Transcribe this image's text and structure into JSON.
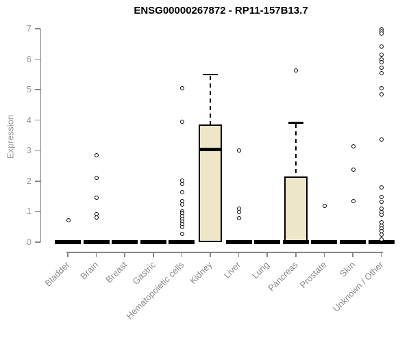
{
  "chart_data": {
    "type": "boxplot",
    "title": "ENSG00000267872 - RP11-157B13.7",
    "xlabel": "",
    "ylabel": "Expression",
    "ylim": [
      0,
      7
    ],
    "yticks": [
      0,
      1,
      2,
      3,
      4,
      5,
      6,
      7
    ],
    "grid": false,
    "legend": false,
    "categories": [
      "Bladder",
      "Brain",
      "Breast",
      "Gastric",
      "Hematopoietic cells",
      "Kidney",
      "Liver",
      "Lung",
      "Pancreas",
      "Prostate",
      "Skin",
      "Unknown / Other"
    ],
    "boxes": [
      {
        "category": "Bladder",
        "median": 0,
        "q1": 0,
        "q3": 0,
        "whisker_low": 0,
        "whisker_high": 0,
        "outliers": [
          0.72
        ]
      },
      {
        "category": "Brain",
        "median": 0,
        "q1": 0,
        "q3": 0,
        "whisker_low": 0,
        "whisker_high": 0,
        "outliers": [
          2.87,
          2.12,
          1.47,
          0.94,
          0.82
        ]
      },
      {
        "category": "Breast",
        "median": 0,
        "q1": 0,
        "q3": 0,
        "whisker_low": 0,
        "whisker_high": 0,
        "outliers": []
      },
      {
        "category": "Gastric",
        "median": 0,
        "q1": 0,
        "q3": 0,
        "whisker_low": 0,
        "whisker_high": 0,
        "outliers": []
      },
      {
        "category": "Hematopoietic cells",
        "median": 0,
        "q1": 0,
        "q3": 0,
        "whisker_low": 0,
        "whisker_high": 0,
        "outliers": [
          5.05,
          3.95,
          2.03,
          1.92,
          1.66,
          1.36,
          1.25,
          1.03,
          0.95,
          0.86,
          0.77,
          0.68,
          0.59,
          0.5,
          0.27
        ]
      },
      {
        "category": "Kidney",
        "median": 3.05,
        "q1": 0,
        "q3": 3.86,
        "whisker_low": 0,
        "whisker_high": 5.5,
        "outliers": []
      },
      {
        "category": "Liver",
        "median": 0,
        "q1": 0,
        "q3": 0,
        "whisker_low": 0,
        "whisker_high": 0,
        "outliers": [
          3.01,
          1.1,
          0.99,
          0.8
        ]
      },
      {
        "category": "Lung",
        "median": 0,
        "q1": 0,
        "q3": 0,
        "whisker_low": 0,
        "whisker_high": 0,
        "outliers": []
      },
      {
        "category": "Pancreas",
        "median": 0,
        "q1": 0,
        "q3": 2.16,
        "whisker_low": 0,
        "whisker_high": 3.92,
        "outliers": [
          5.64
        ]
      },
      {
        "category": "Prostate",
        "median": 0,
        "q1": 0,
        "q3": 0,
        "whisker_low": 0,
        "whisker_high": 0,
        "outliers": [
          1.2
        ]
      },
      {
        "category": "Skin",
        "median": 0,
        "q1": 0,
        "q3": 0,
        "whisker_low": 0,
        "whisker_high": 0,
        "outliers": [
          3.16,
          2.38,
          1.35
        ]
      },
      {
        "category": "Unknown / Other",
        "median": 0,
        "q1": 0,
        "q3": 0,
        "whisker_low": 0,
        "whisker_high": 0,
        "outliers": [
          7.0,
          6.93,
          6.85,
          6.42,
          6.15,
          6.01,
          5.92,
          5.74,
          5.55,
          5.07,
          4.86,
          3.37,
          1.81,
          1.5,
          1.33,
          1.1,
          1.0,
          0.9,
          0.66,
          0.56,
          0.46,
          0.36,
          0.26,
          0.1
        ]
      }
    ],
    "colors": {
      "box_fill": "#EDE6C8",
      "box_border": "#000000",
      "median": "#000000",
      "whisker": "#000000",
      "outlier": "#000000",
      "axis": "#878787",
      "tick_label": "#969696",
      "x_label": "#8a8a8a",
      "title": "#000000",
      "background": "#ffffff"
    }
  }
}
